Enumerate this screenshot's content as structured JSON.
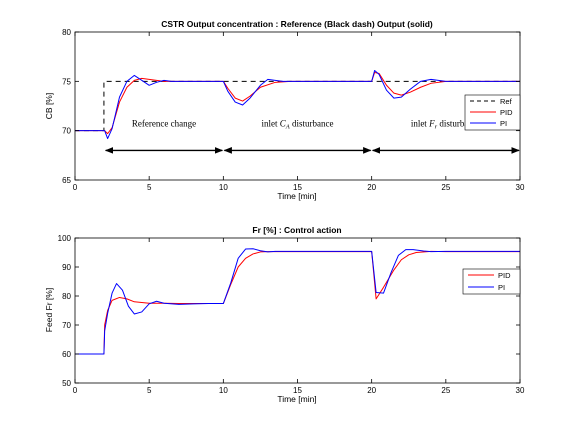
{
  "chart_data": [
    {
      "type": "line",
      "title": "CSTR  Output concentration : Reference (Black dash) Output (solid)",
      "xlabel": "Time [min]",
      "ylabel": "CB [%]",
      "xlim": [
        0,
        30
      ],
      "ylim": [
        65,
        80
      ],
      "xticks": [
        0,
        5,
        10,
        15,
        20,
        25,
        30
      ],
      "yticks": [
        65,
        70,
        75,
        80
      ],
      "legend_position": "right",
      "series": [
        {
          "name": "Ref",
          "color": "#000000",
          "dashed": true,
          "x": [
            0,
            1.95,
            1.95,
            30
          ],
          "y": [
            70,
            70,
            75,
            75
          ]
        },
        {
          "name": "PID",
          "color": "#ff0000",
          "dashed": false,
          "x": [
            0,
            2.0,
            2.2,
            2.5,
            3.0,
            3.5,
            4.0,
            4.5,
            5.0,
            6.0,
            7.0,
            8.0,
            9.0,
            10.0,
            10.3,
            10.8,
            11.3,
            11.8,
            12.5,
            13.5,
            14.5,
            16,
            19.9,
            20.0,
            20.2,
            20.5,
            21.0,
            21.5,
            22.0,
            22.6,
            23.3,
            24.0,
            25.0,
            26.5,
            28,
            30
          ],
          "y": [
            70,
            70,
            69.7,
            70.3,
            72.9,
            74.4,
            75.1,
            75.3,
            75.2,
            75.0,
            75.0,
            75.0,
            75.0,
            75.0,
            74.3,
            73.3,
            73.0,
            73.5,
            74.4,
            74.9,
            75.0,
            75.0,
            75.0,
            75.0,
            75.9,
            75.8,
            74.6,
            73.8,
            73.6,
            73.9,
            74.4,
            74.8,
            75.0,
            75.0,
            75.0,
            75.0
          ]
        },
        {
          "name": "PI",
          "color": "#0000ff",
          "dashed": false,
          "x": [
            0,
            2.0,
            2.2,
            2.5,
            3.0,
            3.5,
            4.0,
            4.5,
            5.0,
            5.5,
            6.0,
            6.5,
            7.0,
            8.0,
            9.0,
            10.0,
            10.3,
            10.8,
            11.3,
            11.8,
            12.5,
            13.0,
            14.0,
            15,
            19.9,
            20.0,
            20.2,
            20.5,
            21.0,
            21.5,
            22.0,
            22.6,
            23.3,
            24.0,
            25.0,
            26.5,
            28,
            30
          ],
          "y": [
            70,
            70,
            69.2,
            70.2,
            73.4,
            75.0,
            75.6,
            75.1,
            74.6,
            74.9,
            75.1,
            75.0,
            75.0,
            75.0,
            75.0,
            75.0,
            74.0,
            72.9,
            72.6,
            73.3,
            74.6,
            75.2,
            75.0,
            75.0,
            75.0,
            75.0,
            76.1,
            75.7,
            74.1,
            73.3,
            73.4,
            74.2,
            75.0,
            75.2,
            75.0,
            75.0,
            75.0,
            75.0
          ]
        }
      ],
      "annotations": [
        {
          "text": "Reference change",
          "x": 6.0,
          "y": 70.4
        },
        {
          "text": "inlet ",
          "math": "C",
          "sub": "A",
          "tail": " disturbance",
          "x": 15.0,
          "y": 70.4
        },
        {
          "text": "inlet ",
          "math": "F",
          "sub": "r",
          "tail": " disturbance",
          "x": 25.0,
          "y": 70.4
        }
      ],
      "arrows": [
        {
          "x1": 2.0,
          "x2": 10.0,
          "y": 68.0
        },
        {
          "x1": 10.0,
          "x2": 20.0,
          "y": 68.0
        },
        {
          "x1": 20.0,
          "x2": 30.0,
          "y": 68.0
        }
      ]
    },
    {
      "type": "line",
      "title": "Fr [%] : Control action",
      "xlabel": "Time [min]",
      "ylabel": "Feed Fr  [%]",
      "xlim": [
        0,
        30
      ],
      "ylim": [
        50,
        100
      ],
      "xticks": [
        0,
        5,
        10,
        15,
        20,
        25,
        30
      ],
      "yticks": [
        50,
        60,
        70,
        80,
        90,
        100
      ],
      "legend_position": "right",
      "series": [
        {
          "name": "PID",
          "color": "#ff0000",
          "dashed": false,
          "x": [
            0,
            1.95,
            2.0,
            2.2,
            2.5,
            3.0,
            3.5,
            4.0,
            5.0,
            6.0,
            7.0,
            8.0,
            9.0,
            10.0,
            10.5,
            11.0,
            11.5,
            12.0,
            12.5,
            13.0,
            14.0,
            15.0,
            19.9,
            20.0,
            20.3,
            20.8,
            21.5,
            22.0,
            22.5,
            23.0,
            24.0,
            25.0,
            27.0,
            30
          ],
          "y": [
            60,
            60,
            70,
            75,
            78.5,
            79.5,
            79.0,
            78.0,
            77.5,
            77.5,
            77.4,
            77.4,
            77.4,
            77.4,
            84,
            90,
            93,
            94.5,
            95.2,
            95.3,
            95.3,
            95.3,
            95.3,
            95.3,
            79,
            83,
            89,
            92.5,
            94.2,
            95.0,
            95.4,
            95.3,
            95.3,
            95.3
          ]
        },
        {
          "name": "PI",
          "color": "#0000ff",
          "dashed": false,
          "x": [
            0,
            1.95,
            2.0,
            2.2,
            2.5,
            2.8,
            3.2,
            3.6,
            4.0,
            4.5,
            5.0,
            5.5,
            6.0,
            7.0,
            8.0,
            9.0,
            10.0,
            10.5,
            11.0,
            11.5,
            12.0,
            12.5,
            13.0,
            13.5,
            14.0,
            15.0,
            19.9,
            20.0,
            20.3,
            20.8,
            21.3,
            21.8,
            22.3,
            22.8,
            23.5,
            24.0,
            25.0,
            27.0,
            30
          ],
          "y": [
            60,
            60,
            68,
            74,
            81,
            84.3,
            82.0,
            76.5,
            73.8,
            74.5,
            77.3,
            78.2,
            77.5,
            77.1,
            77.3,
            77.4,
            77.4,
            84.5,
            93,
            96.2,
            96.3,
            95.6,
            95.2,
            95.4,
            95.4,
            95.4,
            95.4,
            95.4,
            81.2,
            81.0,
            88.0,
            94.0,
            96.0,
            96.0,
            95.5,
            95.3,
            95.4,
            95.4,
            95.4
          ]
        }
      ]
    }
  ]
}
